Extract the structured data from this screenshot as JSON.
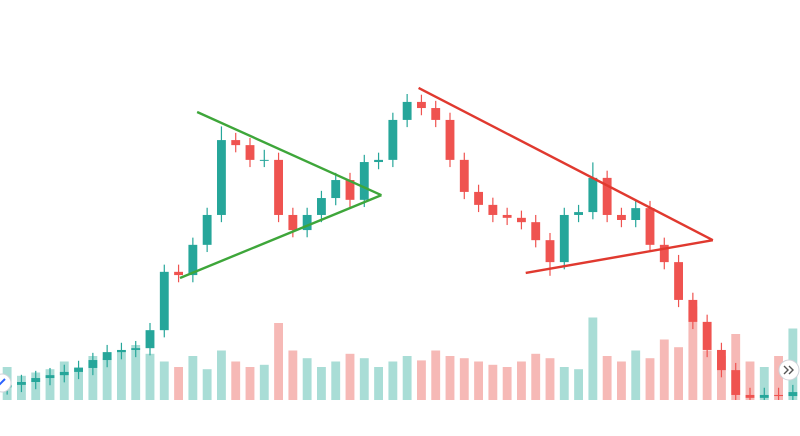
{
  "chart_data": {
    "type": "candlestick",
    "up_color": "#26a69a",
    "down_color": "#ef5350",
    "volume_up_color": "#a9ddd6",
    "volume_down_color": "#f6b9b6",
    "ylim": [
      -5,
      100
    ],
    "volume_lim": [
      0,
      100
    ],
    "open": [
      3.5,
      4.2,
      5,
      6.1,
      6.9,
      7.8,
      8.9,
      11.1,
      13.3,
      13.9,
      14.4,
      19.4,
      35.6,
      34.7,
      43.1,
      51.4,
      72.2,
      70.8,
      66.7,
      66.7,
      51.4,
      47.2,
      51.4,
      56.1,
      61.1,
      55.6,
      66.1,
      66.7,
      77.8,
      82.8,
      81.1,
      77.8,
      66.7,
      57.8,
      54.2,
      51.4,
      50.6,
      49.4,
      44.4,
      38.3,
      51.4,
      52.2,
      61.7,
      51.4,
      50,
      53.3,
      43.1,
      38.3,
      27.8,
      21.7,
      13.9,
      8.3,
      1.4,
      0.6,
      1.4,
      1.1
    ],
    "high": [
      6.2,
      7,
      8.1,
      8.9,
      9.8,
      10.9,
      13.1,
      15.3,
      15.9,
      16.4,
      21.4,
      37.6,
      37.6,
      45.1,
      53.4,
      76,
      74.2,
      72.8,
      69.5,
      68.7,
      53.4,
      53.4,
      58.1,
      63.1,
      63.1,
      68.1,
      68.7,
      79.8,
      85,
      84.8,
      83.1,
      79.8,
      68.7,
      59.8,
      56.2,
      53.4,
      52.6,
      51.4,
      46.4,
      53.4,
      54.2,
      66,
      63.7,
      53.4,
      55.3,
      55.3,
      45.1,
      40.3,
      29.8,
      23.7,
      15.9,
      10.3,
      3.4,
      3.4,
      3.4,
      4.2
    ],
    "low": [
      1.5,
      2.2,
      3,
      4.1,
      4.9,
      5.8,
      6.9,
      9.1,
      11.3,
      11.9,
      12.4,
      17.4,
      32.7,
      32.7,
      41.1,
      49.4,
      68.8,
      64.7,
      64.7,
      49.4,
      45.2,
      45.2,
      49.4,
      54.1,
      53.6,
      53.6,
      64.1,
      64.7,
      75.8,
      79.1,
      75.8,
      64.7,
      55.8,
      52.2,
      49.4,
      48.6,
      47.4,
      42.4,
      34.5,
      36.3,
      49.4,
      50.2,
      49.4,
      48,
      48,
      41.1,
      36.3,
      25.8,
      19.7,
      11.9,
      6.3,
      -0.6,
      -1.4,
      -1.4,
      -0.9,
      -0.9
    ],
    "close": [
      4.2,
      5,
      6.1,
      6.9,
      7.8,
      8.9,
      11.1,
      13.3,
      13.9,
      14.4,
      19.4,
      35.6,
      34.7,
      43.1,
      51.4,
      72.2,
      70.8,
      66.7,
      66.7,
      51.4,
      47.2,
      51.4,
      56.1,
      61.1,
      55.6,
      66.1,
      66.7,
      77.8,
      82.8,
      81.1,
      77.8,
      66.7,
      57.8,
      54.2,
      51.4,
      50.6,
      49.4,
      44.4,
      38.3,
      51.4,
      52.2,
      61.7,
      51.4,
      50,
      53.3,
      43.1,
      38.3,
      27.8,
      21.7,
      13.9,
      8.3,
      1.4,
      0.6,
      1.4,
      1.1,
      2.2
    ],
    "volume": [
      30,
      22,
      25,
      28,
      35,
      30,
      40,
      38,
      45,
      50,
      42,
      35,
      30,
      40,
      28,
      45,
      35,
      30,
      32,
      70,
      45,
      38,
      30,
      35,
      42,
      38,
      30,
      35,
      40,
      36,
      45,
      40,
      38,
      35,
      32,
      30,
      35,
      42,
      38,
      30,
      28,
      75,
      40,
      35,
      45,
      38,
      55,
      48,
      85,
      45,
      40,
      60,
      35,
      30,
      40,
      65
    ],
    "trendlines": [
      {
        "color": "#3ea63a",
        "x": [
          13.3,
          26.2
        ],
        "y": [
          80,
          56.9
        ]
      },
      {
        "color": "#3ea63a",
        "x": [
          12.1,
          26.2
        ],
        "y": [
          33.9,
          56.9
        ]
      },
      {
        "color": "#e0392f",
        "x": [
          28.8,
          49.4
        ],
        "y": [
          86.7,
          44.4
        ]
      },
      {
        "color": "#e0392f",
        "x": [
          36.3,
          49.4
        ],
        "y": [
          35.3,
          44.4
        ]
      }
    ]
  }
}
